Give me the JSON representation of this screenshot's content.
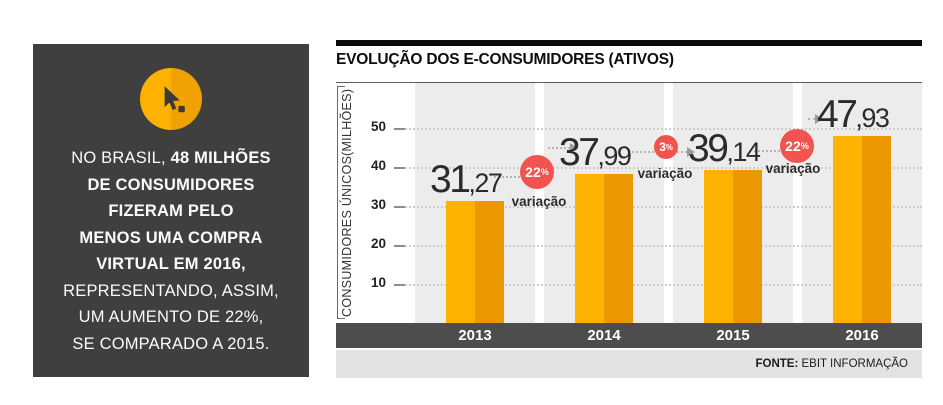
{
  "sidebar": {
    "icon": "cursor-icon",
    "lines": [
      {
        "segments": [
          {
            "text": "NO BRASIL, ",
            "bold": false
          },
          {
            "text": "48 MILHÕES",
            "bold": true
          }
        ]
      },
      {
        "segments": [
          {
            "text": "DE CONSUMIDORES",
            "bold": true
          }
        ]
      },
      {
        "segments": [
          {
            "text": "FIZERAM PELO",
            "bold": true
          }
        ]
      },
      {
        "segments": [
          {
            "text": "MENOS UMA COMPRA",
            "bold": true
          }
        ]
      },
      {
        "segments": [
          {
            "text": "VIRTUAL EM 2016,",
            "bold": true
          }
        ]
      },
      {
        "segments": [
          {
            "text": "REPRESENTANDO, ASSIM,",
            "bold": false
          }
        ]
      },
      {
        "segments": [
          {
            "text": "UM AUMENTO DE 22%,",
            "bold": false
          }
        ]
      },
      {
        "segments": [
          {
            "text": "SE COMPARADO A 2015.",
            "bold": false
          }
        ]
      }
    ]
  },
  "chart": {
    "title": "EVOLUÇÃO DOS E-CONSUMIDORES (ATIVOS)",
    "source_bold": "FONTE:",
    "source_text": " EBIT INFORMAÇÃO",
    "ylabel_line1": "CONSUMIDORES ÚNICOS",
    "ylabel_line2": "(MILHÕES)"
  },
  "chart_data": {
    "type": "bar",
    "title": "EVOLUÇÃO DOS E-CONSUMIDORES (ATIVOS)",
    "categories": [
      "2013",
      "2014",
      "2015",
      "2016"
    ],
    "values": [
      31.27,
      37.99,
      39.14,
      47.93
    ],
    "value_labels": [
      "31,27",
      "37,99",
      "39,14",
      "47,93"
    ],
    "variations": [
      {
        "between": "2013-2014",
        "value": "22",
        "suffix": "%",
        "label": "variação"
      },
      {
        "between": "2014-2015",
        "value": "3",
        "suffix": "%",
        "label": "variação"
      },
      {
        "between": "2015-2016",
        "value": "22",
        "suffix": "%",
        "label": "variação"
      }
    ],
    "ylabel": "CONSUMIDORES ÚNICOS (MILHÕES)",
    "yticks": [
      10,
      20,
      30,
      40,
      50
    ],
    "ylim": [
      0,
      55
    ],
    "grid": "dotted horizontal gridlines",
    "legend": "none",
    "source": "FONTE: EBIT INFORMAÇÃO",
    "colors": {
      "bar_light": "#FFB301",
      "bar_dark": "#EC9801",
      "variation_badge": "#F1544F",
      "axis_band": "#4D4D4D",
      "plot_band": "#ECECEC",
      "sidebar_bg": "#3F3F3F",
      "circle_icon": "#FCB103"
    }
  }
}
